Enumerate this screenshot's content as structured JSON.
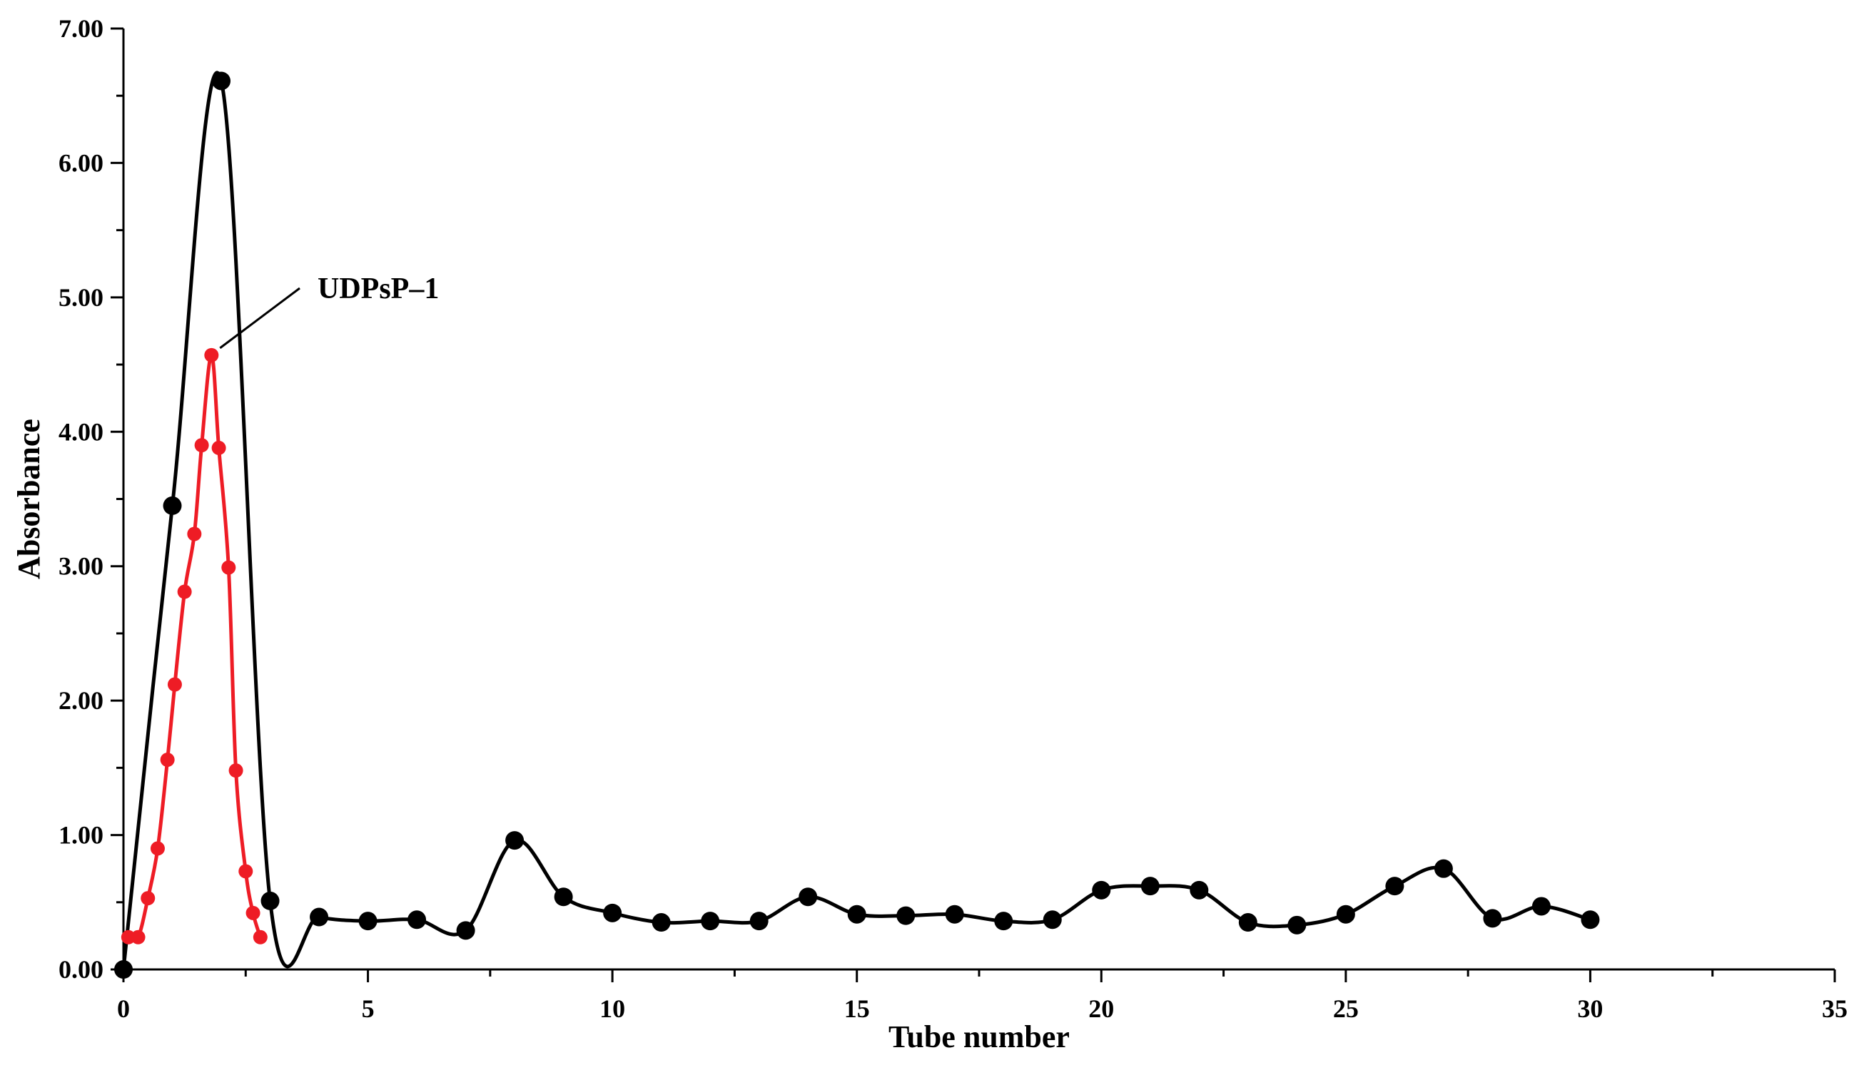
{
  "chart_data": {
    "type": "line",
    "title": "",
    "xlabel": "Tube number",
    "ylabel": "Absorbance",
    "xlim": [
      0,
      35
    ],
    "ylim": [
      0,
      7
    ],
    "x_ticks": [
      "0",
      "5",
      "10",
      "15",
      "20",
      "25",
      "30",
      "35"
    ],
    "y_ticks": [
      "0.00",
      "1.00",
      "2.00",
      "3.00",
      "4.00",
      "5.00",
      "6.00",
      "7.00"
    ],
    "grid": false,
    "legend": "none",
    "annotations": [
      {
        "text": "UDPsP–1",
        "points_to_series": 1
      }
    ],
    "series": [
      {
        "color": "#000000",
        "x": [
          0,
          1,
          2,
          3,
          4,
          5,
          6,
          7,
          8,
          9,
          10,
          11,
          12,
          13,
          14,
          15,
          16,
          17,
          18,
          19,
          20,
          21,
          22,
          23,
          24,
          25,
          26,
          27,
          28,
          29,
          30
        ],
        "y": [
          0.0,
          3.45,
          6.61,
          0.51,
          0.39,
          0.36,
          0.37,
          0.29,
          0.96,
          0.54,
          0.42,
          0.35,
          0.36,
          0.36,
          0.54,
          0.41,
          0.4,
          0.41,
          0.36,
          0.37,
          0.59,
          0.62,
          0.59,
          0.35,
          0.33,
          0.41,
          0.62,
          0.75,
          0.38,
          0.47,
          0.37
        ]
      },
      {
        "color": "#ee1c25",
        "x": [
          0.1,
          0.3,
          0.5,
          0.7,
          0.9,
          1.05,
          1.25,
          1.45,
          1.6,
          1.8,
          1.95,
          2.15,
          2.3,
          2.5,
          2.65,
          2.8
        ],
        "y": [
          0.24,
          0.24,
          0.53,
          0.9,
          1.56,
          2.12,
          2.81,
          3.24,
          3.9,
          4.57,
          3.88,
          2.99,
          1.48,
          0.73,
          0.42,
          0.24
        ]
      }
    ]
  }
}
